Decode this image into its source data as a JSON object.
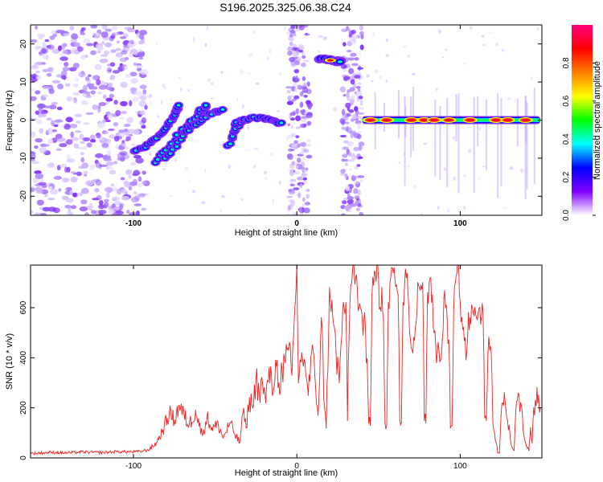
{
  "title": "S196.2025.325.06.38.C24",
  "chart_data": [
    {
      "type": "heatmap",
      "title": "S196.2025.325.06.38.C24",
      "xlabel": "Height of straight line (km)",
      "ylabel": "Frequency (Hz)",
      "xlim": [
        -163,
        150
      ],
      "ylim": [
        -25,
        25
      ],
      "x_ticks": [
        -100,
        0,
        100
      ],
      "y_ticks": [
        -20,
        -10,
        0,
        10,
        20
      ],
      "colorbar": {
        "label": "Normalized spectral amplitude",
        "range": [
          0,
          1
        ],
        "ticks": [
          "0.0",
          "0.2",
          "0.4",
          "0.6",
          "0.8"
        ],
        "tick_values": [
          0.0,
          0.2,
          0.4,
          0.6,
          0.8
        ],
        "colors": [
          "#ffffff",
          "#7f00ff",
          "#0000ff",
          "#00ffff",
          "#00ff00",
          "#ffff00",
          "#ff8000",
          "#ff0000",
          "#ff007f"
        ]
      },
      "noise_region_x": [
        -163,
        -92
      ],
      "noise_columns_x": [
        [
          -5,
          8
        ],
        [
          28,
          40
        ]
      ],
      "features": [
        {
          "name": "rising segment A",
          "x": [
            -100,
            -93,
            -87,
            -82,
            -77,
            -74,
            -72
          ],
          "y": [
            -8,
            -7,
            -5,
            -3,
            0,
            2,
            4
          ]
        },
        {
          "name": "rising segment B",
          "x": [
            -87,
            -80,
            -73,
            -66,
            -60,
            -55
          ],
          "y": [
            -11,
            -8,
            -4,
            -1,
            2,
            4
          ]
        },
        {
          "name": "rising segment C",
          "x": [
            -80,
            -74,
            -68,
            -62,
            -56,
            -50,
            -45
          ],
          "y": [
            -10,
            -7,
            -3,
            -1,
            1,
            2,
            3
          ]
        },
        {
          "name": "rising segment D",
          "x": [
            -42,
            -38,
            -34
          ],
          "y": [
            -7,
            -3,
            0
          ]
        },
        {
          "name": "arc near zero",
          "x": [
            -38,
            -32,
            -26,
            -20,
            -14,
            -10
          ],
          "y": [
            -1,
            0,
            0.5,
            0.5,
            0,
            -1
          ]
        },
        {
          "name": "short line at 16 Hz",
          "x": [
            14,
            19,
            24,
            27
          ],
          "y": [
            16,
            16,
            15.5,
            15.5
          ]
        },
        {
          "name": "horizontal line at 0 Hz",
          "x": [
            40,
            149
          ],
          "y": [
            0,
            0
          ]
        }
      ],
      "hot_spots_x": [
        45,
        55,
        70,
        78,
        84,
        93,
        106,
        122,
        129,
        140
      ],
      "hot_spots_y": 0
    },
    {
      "type": "line",
      "xlabel": "Height of straight line (km)",
      "ylabel": "SNR (10 * v/v)",
      "xlim": [
        -163,
        150
      ],
      "ylim": [
        0,
        770
      ],
      "x_ticks": [
        -100,
        0,
        100
      ],
      "y_ticks": [
        0,
        200,
        400,
        600
      ],
      "series": [
        {
          "name": "SNR",
          "color": "#ee2222",
          "x": [
            -163,
            -150,
            -140,
            -130,
            -120,
            -110,
            -100,
            -95,
            -90,
            -86,
            -82,
            -78,
            -75,
            -72,
            -69,
            -66,
            -62,
            -58,
            -55,
            -52,
            -48,
            -45,
            -41,
            -38,
            -35,
            -33,
            -31,
            -29,
            -27,
            -25,
            -23,
            -21,
            -19,
            -17,
            -15,
            -13,
            -11,
            -9,
            -7,
            -5,
            -3,
            -1,
            0,
            1,
            3,
            5,
            7,
            9,
            11,
            13,
            15,
            17,
            18,
            20,
            22,
            24,
            26,
            28,
            30,
            31,
            32,
            33,
            34,
            35,
            36,
            37,
            38,
            40,
            42,
            44,
            45,
            46,
            47,
            48,
            49,
            50,
            51,
            52,
            53,
            54,
            55,
            56,
            57,
            58,
            59,
            60,
            61,
            62,
            63,
            64,
            65,
            66,
            67,
            68,
            69,
            70,
            71,
            72,
            73,
            74,
            75,
            76,
            77,
            78,
            79,
            80,
            81,
            82,
            83,
            84,
            85,
            86,
            87,
            88,
            89,
            90,
            91,
            92,
            93,
            94,
            95,
            96,
            97,
            98,
            99,
            100,
            101,
            102,
            103,
            104,
            105,
            106,
            107,
            108,
            109,
            110,
            111,
            112,
            113,
            114,
            115,
            116,
            117,
            118,
            119,
            120,
            121,
            122,
            123,
            124,
            125,
            126,
            127,
            128,
            129,
            130,
            131,
            132,
            133,
            134,
            135,
            136,
            137,
            138,
            139,
            140,
            141,
            142,
            143,
            144,
            145,
            146,
            147,
            148,
            149
          ],
          "values": [
            18,
            22,
            20,
            24,
            21,
            25,
            24,
            26,
            35,
            60,
            110,
            180,
            150,
            210,
            170,
            130,
            190,
            90,
            160,
            120,
            130,
            80,
            140,
            95,
            60,
            180,
            120,
            240,
            200,
            320,
            260,
            300,
            220,
            360,
            250,
            390,
            300,
            350,
            380,
            430,
            330,
            620,
            770,
            300,
            420,
            380,
            250,
            420,
            330,
            170,
            560,
            200,
            120,
            680,
            560,
            420,
            300,
            580,
            620,
            150,
            480,
            690,
            740,
            760,
            720,
            680,
            600,
            560,
            520,
            140,
            130,
            650,
            690,
            740,
            770,
            720,
            600,
            680,
            560,
            140,
            130,
            620,
            700,
            760,
            740,
            720,
            690,
            650,
            150,
            140,
            620,
            700,
            720,
            660,
            500,
            440,
            420,
            470,
            540,
            700,
            680,
            690,
            700,
            150,
            140,
            660,
            700,
            720,
            650,
            500,
            450,
            420,
            430,
            390,
            470,
            640,
            600,
            560,
            470,
            120,
            130,
            600,
            700,
            740,
            770,
            620,
            560,
            520,
            480,
            420,
            580,
            560,
            610,
            580,
            600,
            560,
            580,
            600,
            560,
            580,
            160,
            150,
            420,
            430,
            420,
            140,
            100,
            60,
            20,
            20,
            170,
            220,
            260,
            190,
            150,
            130,
            60,
            40,
            30,
            190,
            230,
            250,
            220,
            180,
            90,
            60,
            40,
            30,
            120,
            60,
            200,
            230,
            280,
            250,
            200
          ]
        }
      ]
    }
  ]
}
